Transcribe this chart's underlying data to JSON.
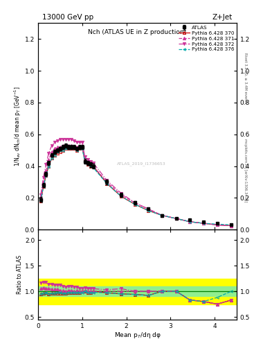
{
  "title_left": "13000 GeV pp",
  "title_right": "Z+Jet",
  "plot_title": "Nch (ATLAS UE in Z production)",
  "ylabel_main": "1/N$_{ev}$ dN$_{ch}$/d mean p$_{T}$ [GeV$^{-1}$]",
  "ylabel_ratio": "Ratio to ATLAS",
  "xlabel": "Mean p$_{T}$/dη dφ",
  "right_label_top": "Rivet 3.1.10, ≥ 3.4M events",
  "right_label_bot": "mcplots.cern.ch [arXiv:1306.3436]",
  "watermark": "ATLAS_2019_I1736653",
  "ylim_main": [
    0.0,
    1.3
  ],
  "ylim_ratio": [
    0.45,
    2.2
  ],
  "xlim": [
    0.0,
    4.5
  ],
  "atlas_x": [
    0.06,
    0.12,
    0.18,
    0.24,
    0.31,
    0.37,
    0.44,
    0.5,
    0.56,
    0.63,
    0.69,
    0.75,
    0.81,
    0.88,
    0.94,
    1.0,
    1.06,
    1.13,
    1.19,
    1.25,
    1.56,
    1.88,
    2.19,
    2.5,
    2.81,
    3.13,
    3.44,
    3.75,
    4.06,
    4.38
  ],
  "atlas_y": [
    0.19,
    0.28,
    0.35,
    0.42,
    0.47,
    0.49,
    0.5,
    0.51,
    0.52,
    0.53,
    0.52,
    0.52,
    0.52,
    0.51,
    0.52,
    0.52,
    0.43,
    0.42,
    0.41,
    0.4,
    0.3,
    0.22,
    0.17,
    0.13,
    0.09,
    0.07,
    0.06,
    0.05,
    0.04,
    0.03
  ],
  "atlas_yerr": [
    0.015,
    0.012,
    0.012,
    0.012,
    0.012,
    0.012,
    0.012,
    0.012,
    0.012,
    0.012,
    0.012,
    0.012,
    0.012,
    0.012,
    0.012,
    0.012,
    0.015,
    0.015,
    0.015,
    0.015,
    0.015,
    0.012,
    0.01,
    0.008,
    0.006,
    0.005,
    0.004,
    0.004,
    0.003,
    0.003
  ],
  "py370_x": [
    0.06,
    0.12,
    0.18,
    0.24,
    0.31,
    0.37,
    0.44,
    0.5,
    0.56,
    0.63,
    0.69,
    0.75,
    0.81,
    0.88,
    0.94,
    1.0,
    1.06,
    1.13,
    1.19,
    1.25,
    1.56,
    1.88,
    2.19,
    2.5,
    2.81,
    3.13,
    3.44,
    3.75,
    4.06,
    4.38
  ],
  "py370_y": [
    0.18,
    0.27,
    0.34,
    0.4,
    0.45,
    0.47,
    0.48,
    0.49,
    0.5,
    0.51,
    0.51,
    0.51,
    0.51,
    0.5,
    0.51,
    0.52,
    0.43,
    0.41,
    0.4,
    0.4,
    0.29,
    0.21,
    0.16,
    0.12,
    0.09,
    0.07,
    0.05,
    0.04,
    0.03,
    0.025
  ],
  "py371_x": [
    0.06,
    0.12,
    0.18,
    0.24,
    0.31,
    0.37,
    0.44,
    0.5,
    0.56,
    0.63,
    0.69,
    0.75,
    0.81,
    0.88,
    0.94,
    1.0,
    1.06,
    1.13,
    1.19,
    1.25,
    1.56,
    1.88,
    2.19,
    2.5,
    2.81,
    3.13,
    3.44,
    3.75,
    4.06,
    4.38
  ],
  "py371_y": [
    0.2,
    0.3,
    0.37,
    0.44,
    0.49,
    0.51,
    0.52,
    0.52,
    0.53,
    0.53,
    0.53,
    0.53,
    0.52,
    0.52,
    0.52,
    0.52,
    0.44,
    0.42,
    0.41,
    0.4,
    0.3,
    0.22,
    0.17,
    0.13,
    0.09,
    0.07,
    0.05,
    0.04,
    0.03,
    0.025
  ],
  "py372_x": [
    0.06,
    0.12,
    0.18,
    0.24,
    0.31,
    0.37,
    0.44,
    0.5,
    0.56,
    0.63,
    0.69,
    0.75,
    0.81,
    0.88,
    0.94,
    1.0,
    1.06,
    1.13,
    1.19,
    1.25,
    1.56,
    1.88,
    2.19,
    2.5,
    2.81,
    3.13,
    3.44,
    3.75,
    4.06,
    4.38
  ],
  "py372_y": [
    0.22,
    0.33,
    0.41,
    0.48,
    0.53,
    0.55,
    0.56,
    0.57,
    0.57,
    0.57,
    0.57,
    0.57,
    0.56,
    0.55,
    0.55,
    0.55,
    0.46,
    0.44,
    0.43,
    0.42,
    0.31,
    0.23,
    0.17,
    0.13,
    0.09,
    0.07,
    0.05,
    0.04,
    0.03,
    0.025
  ],
  "py376_x": [
    0.06,
    0.12,
    0.18,
    0.24,
    0.31,
    0.37,
    0.44,
    0.5,
    0.56,
    0.63,
    0.69,
    0.75,
    0.81,
    0.88,
    0.94,
    1.0,
    1.06,
    1.13,
    1.19,
    1.25,
    1.56,
    1.88,
    2.19,
    2.5,
    2.81,
    3.13,
    3.44,
    3.75,
    4.06,
    4.38
  ],
  "py376_y": [
    0.18,
    0.27,
    0.34,
    0.4,
    0.45,
    0.47,
    0.49,
    0.5,
    0.5,
    0.51,
    0.51,
    0.51,
    0.51,
    0.5,
    0.51,
    0.51,
    0.43,
    0.41,
    0.4,
    0.39,
    0.29,
    0.21,
    0.16,
    0.12,
    0.09,
    0.07,
    0.05,
    0.04,
    0.035,
    0.03
  ],
  "color_370": "#cc0000",
  "color_371": "#cc3399",
  "color_372": "#cc3399",
  "color_376": "#00aaaa",
  "ratio370_y": [
    0.95,
    0.96,
    0.97,
    0.95,
    0.96,
    0.96,
    0.96,
    0.96,
    0.96,
    0.96,
    0.98,
    0.98,
    0.98,
    0.98,
    0.98,
    1.0,
    1.0,
    0.98,
    0.98,
    1.0,
    0.97,
    0.95,
    0.94,
    0.92,
    1.0,
    1.0,
    0.83,
    0.8,
    0.75,
    0.83
  ],
  "ratio371_y": [
    1.05,
    1.07,
    1.06,
    1.05,
    1.04,
    1.04,
    1.04,
    1.02,
    1.02,
    1.0,
    1.02,
    1.02,
    1.0,
    1.02,
    1.0,
    1.0,
    1.02,
    1.0,
    1.0,
    1.0,
    1.0,
    1.0,
    1.0,
    1.0,
    1.0,
    1.0,
    0.83,
    0.8,
    0.75,
    0.83
  ],
  "ratio372_y": [
    1.16,
    1.18,
    1.17,
    1.14,
    1.13,
    1.12,
    1.12,
    1.12,
    1.1,
    1.08,
    1.1,
    1.1,
    1.08,
    1.08,
    1.06,
    1.06,
    1.07,
    1.05,
    1.05,
    1.05,
    1.03,
    1.05,
    1.0,
    1.0,
    1.0,
    1.0,
    0.83,
    0.8,
    0.75,
    0.83
  ],
  "ratio376_y": [
    0.95,
    0.96,
    0.97,
    0.95,
    0.96,
    0.96,
    0.98,
    0.98,
    0.96,
    0.96,
    0.98,
    0.98,
    0.98,
    0.98,
    0.98,
    0.98,
    1.0,
    0.98,
    0.98,
    0.98,
    0.97,
    0.95,
    0.94,
    0.92,
    1.0,
    1.0,
    0.83,
    0.8,
    0.88,
    1.0
  ],
  "yticks_main": [
    0.0,
    0.2,
    0.4,
    0.6,
    0.8,
    1.0,
    1.2
  ],
  "yticks_ratio": [
    0.5,
    1.0,
    1.5,
    2.0
  ],
  "xticks": [
    0,
    1,
    2,
    3,
    4
  ]
}
